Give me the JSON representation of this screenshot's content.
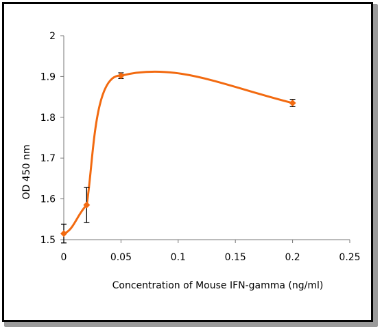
{
  "chart_data": {
    "type": "scatter",
    "title": "",
    "xlabel": "Concentration of Mouse IFN-gamma (ng/ml)",
    "ylabel": "OD 450 nm",
    "xlim": [
      0,
      0.25
    ],
    "ylim": [
      1.5,
      2
    ],
    "x_ticks": [
      "0",
      "0.05",
      "0.1",
      "0.15",
      "0.2",
      "0.25"
    ],
    "y_ticks": [
      "1.5",
      "1.6",
      "1.7",
      "1.8",
      "1.9",
      "2"
    ],
    "grid": false,
    "legend": "none",
    "series": [
      {
        "color": "#F26A10",
        "marker": "diamond",
        "line": "smooth",
        "points": [
          {
            "x": 0,
            "y": 1.515,
            "err": 0.023
          },
          {
            "x": 0.02,
            "y": 1.585,
            "err": 0.043
          },
          {
            "x": 0.05,
            "y": 1.902,
            "err": 0.007
          },
          {
            "x": 0.2,
            "y": 1.835,
            "err": 0.009
          }
        ]
      }
    ]
  }
}
